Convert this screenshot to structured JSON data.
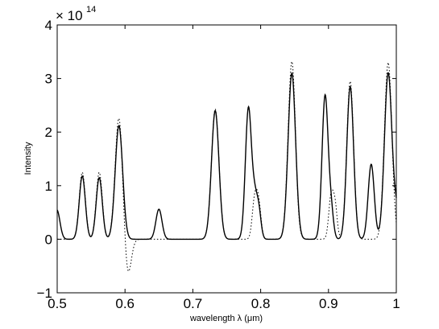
{
  "chart_data": {
    "type": "line",
    "xlabel": "wavelength λ (μm)",
    "ylabel": "Intensity",
    "y_multiplier": "× 10",
    "y_multiplier_exponent": "14",
    "xlim": [
      0.5,
      1.0
    ],
    "ylim": [
      -1,
      4
    ],
    "grid": false,
    "x_ticks": [
      0.5,
      0.6,
      0.7,
      0.8,
      0.9,
      1.0
    ],
    "x_tick_labels": [
      "0.5",
      "0.6",
      "0.7",
      "0.8",
      "0.9",
      "1"
    ],
    "y_ticks": [
      -1,
      0,
      1,
      2,
      3,
      4
    ],
    "y_tick_labels": [
      "−1",
      "0",
      "1",
      "2",
      "3",
      "4"
    ],
    "series": [
      {
        "style": "solid",
        "color": "#000000",
        "peaks": [
          {
            "center": 0.4995,
            "height": 0.55,
            "width": 0.0045
          },
          {
            "center": 0.537,
            "height": 1.18,
            "width": 0.0045
          },
          {
            "center": 0.562,
            "height": 1.15,
            "width": 0.0045
          },
          {
            "center": 0.591,
            "height": 2.12,
            "width": 0.0055
          },
          {
            "center": 0.65,
            "height": 0.56,
            "width": 0.0045
          },
          {
            "center": 0.733,
            "height": 2.4,
            "width": 0.0055
          },
          {
            "center": 0.782,
            "height": 2.45,
            "width": 0.0045
          },
          {
            "center": 0.791,
            "height": 0.62,
            "width": 0.0035
          },
          {
            "center": 0.797,
            "height": 0.55,
            "width": 0.0035
          },
          {
            "center": 0.846,
            "height": 3.1,
            "width": 0.0055
          },
          {
            "center": 0.895,
            "height": 2.68,
            "width": 0.0045
          },
          {
            "center": 0.904,
            "height": 0.48,
            "width": 0.0035
          },
          {
            "center": 0.932,
            "height": 2.85,
            "width": 0.005
          },
          {
            "center": 0.963,
            "height": 1.4,
            "width": 0.0045
          },
          {
            "center": 0.988,
            "height": 3.1,
            "width": 0.0055
          },
          {
            "center": 1.001,
            "height": 0.5,
            "width": 0.0045
          }
        ]
      },
      {
        "style": "dotted",
        "color": "#000000",
        "peaks": [
          {
            "center": 0.537,
            "height": 1.25,
            "width": 0.0045
          },
          {
            "center": 0.562,
            "height": 1.25,
            "width": 0.0045
          },
          {
            "center": 0.591,
            "height": 2.28,
            "width": 0.0055
          },
          {
            "center": 0.604,
            "height": -0.7,
            "width": 0.005
          },
          {
            "center": 0.733,
            "height": 2.43,
            "width": 0.0055
          },
          {
            "center": 0.791,
            "height": 0.7,
            "width": 0.0035
          },
          {
            "center": 0.797,
            "height": 0.65,
            "width": 0.0035
          },
          {
            "center": 0.846,
            "height": 3.32,
            "width": 0.0055
          },
          {
            "center": 0.855,
            "height": -0.12,
            "width": 0.003
          },
          {
            "center": 0.904,
            "height": 0.82,
            "width": 0.0035
          },
          {
            "center": 0.91,
            "height": 0.55,
            "width": 0.003
          },
          {
            "center": 0.932,
            "height": 2.95,
            "width": 0.005
          },
          {
            "center": 0.988,
            "height": 3.3,
            "width": 0.0055
          }
        ]
      }
    ]
  }
}
